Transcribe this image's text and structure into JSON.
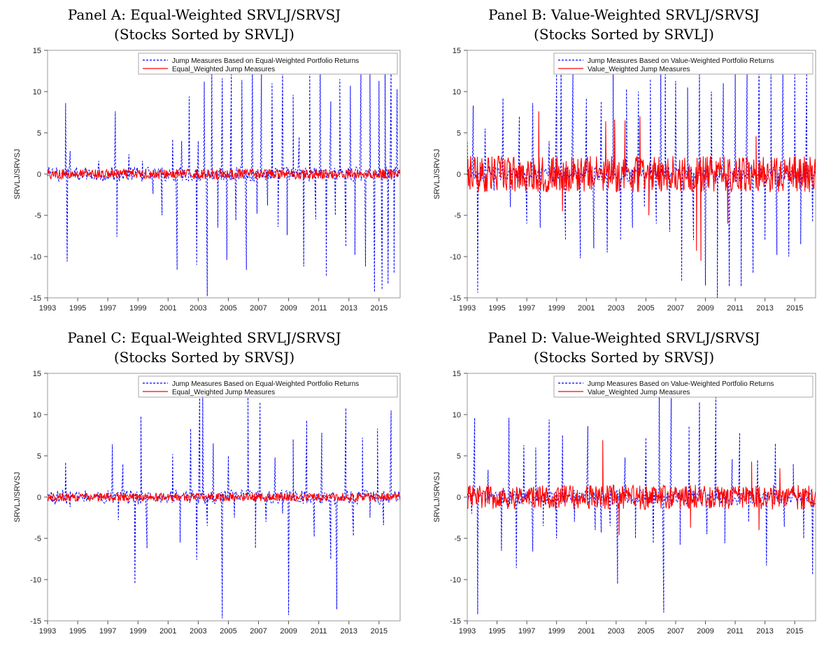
{
  "chart_data": [
    {
      "type": "line",
      "title": "Panel A: Equal-Weighted SRVLJ/SRVSJ",
      "subtitle": "(Stocks Sorted by SRVLJ)",
      "ylabel": "SRVLJ/SRVSJ",
      "xlabel": "",
      "xlim": [
        1993,
        2016.4
      ],
      "ylim": [
        -15,
        15
      ],
      "yticks": [
        -15,
        -10,
        -5,
        0,
        5,
        10,
        15
      ],
      "xticks": [
        "1993",
        "1995",
        "1997",
        "1999",
        "2001",
        "2003",
        "2005",
        "2007",
        "2009",
        "2011",
        "2013",
        "2015"
      ],
      "grid": false,
      "legend_position": "top-right",
      "series": [
        {
          "name": "Jump Measures Based on Equal-Weighted Portfolio Returns",
          "color": "#0000ff",
          "style": "dashed",
          "x": [
            1993.0,
            1993.6,
            1994.2,
            1994.3,
            1994.5,
            1994.8,
            1995.8,
            1996.4,
            1997.5,
            1997.6,
            1998.4,
            1999.3,
            2000.0,
            2000.6,
            2001.3,
            2001.6,
            2001.9,
            2002.4,
            2002.9,
            2003.0,
            2003.4,
            2003.6,
            2003.9,
            2004.3,
            2004.6,
            2004.9,
            2005.2,
            2005.5,
            2005.9,
            2006.2,
            2006.6,
            2006.9,
            2007.2,
            2007.6,
            2007.9,
            2008.3,
            2008.6,
            2008.9,
            2009.3,
            2009.7,
            2010.0,
            2010.4,
            2010.8,
            2011.1,
            2011.5,
            2011.8,
            2012.1,
            2012.4,
            2012.8,
            2013.1,
            2013.4,
            2013.8,
            2014.1,
            2014.4,
            2014.7,
            2015.0,
            2015.2,
            2015.4,
            2015.6,
            2015.8,
            2016.0,
            2016.2
          ],
          "values": [
            0.5,
            0.8,
            8.6,
            -10.6,
            2.8,
            0.5,
            0.3,
            1.6,
            7.6,
            -7.6,
            2.4,
            1.6,
            -2.4,
            -5.0,
            4.2,
            -11.6,
            4.0,
            9.4,
            -11.0,
            4.0,
            11.2,
            -14.8,
            12.7,
            -6.5,
            11.6,
            -10.4,
            12.3,
            -5.6,
            11.4,
            -11.6,
            13.6,
            -4.8,
            12.2,
            -3.8,
            11.0,
            -6.4,
            12.8,
            -7.4,
            9.6,
            4.5,
            -11.2,
            12.4,
            -5.5,
            13.6,
            -12.4,
            8.8,
            -5.0,
            11.5,
            -8.8,
            10.7,
            -9.8,
            12.5,
            -11.2,
            12.2,
            -14.3,
            11.3,
            -14.0,
            12.8,
            -13.3,
            13.2,
            -12.0,
            10.3
          ]
        },
        {
          "name": "Equal_Weighted Jump Measures",
          "color": "#ff0000",
          "style": "solid",
          "amplitude": 0.6
        }
      ]
    },
    {
      "type": "line",
      "title": "Panel B: Value-Weighted SRVLJ/SRVSJ",
      "subtitle": "(Stocks Sorted by SRVLJ)",
      "ylabel": "SRVLJ/SRVSJ",
      "xlabel": "",
      "xlim": [
        1993,
        2016.4
      ],
      "ylim": [
        -15,
        15
      ],
      "yticks": [
        -15,
        -10,
        -5,
        0,
        5,
        10,
        15
      ],
      "xticks": [
        "1993",
        "1995",
        "1997",
        "1999",
        "2001",
        "2003",
        "2005",
        "2007",
        "2009",
        "2011",
        "2013",
        "2015"
      ],
      "grid": false,
      "legend_position": "top-right",
      "series": [
        {
          "name": "Jump Measures Based on Value-Weighted Portfolio Returns",
          "color": "#0000ff",
          "style": "dashed",
          "x": [
            1993.0,
            1993.4,
            1993.7,
            1994.2,
            1994.8,
            1995.4,
            1995.9,
            1996.5,
            1997.0,
            1997.4,
            1997.9,
            1998.5,
            1999.0,
            1999.3,
            1999.6,
            2000.1,
            2000.6,
            2001.0,
            2001.5,
            2002.0,
            2002.4,
            2002.8,
            2003.3,
            2003.7,
            2004.1,
            2004.5,
            2004.9,
            2005.3,
            2005.7,
            2006.0,
            2006.3,
            2006.6,
            2007.0,
            2007.4,
            2007.8,
            2008.2,
            2008.6,
            2009.0,
            2009.4,
            2009.8,
            2010.2,
            2010.6,
            2011.0,
            2011.4,
            2011.8,
            2012.2,
            2012.6,
            2013.0,
            2013.4,
            2013.8,
            2014.2,
            2014.6,
            2015.0,
            2015.4,
            2015.8,
            2016.2
          ],
          "values": [
            4.0,
            8.3,
            -14.4,
            5.5,
            -2.0,
            9.2,
            -4.0,
            7.0,
            -6.0,
            8.6,
            -6.5,
            4.0,
            12.1,
            14.0,
            -8.0,
            12.5,
            -10.2,
            9.2,
            -9.0,
            8.8,
            -9.5,
            12.5,
            -8.0,
            10.3,
            -6.5,
            10.0,
            -4.0,
            11.5,
            -6.0,
            12.5,
            14.2,
            -7.0,
            11.3,
            -13.0,
            10.5,
            -8.0,
            12.5,
            -13.5,
            10.0,
            -15.0,
            11.0,
            -13.6,
            12.4,
            -13.6,
            12.8,
            -12.0,
            14.3,
            -8.0,
            12.1,
            -9.8,
            13.0,
            -10.0,
            12.5,
            -8.5,
            12.2,
            -5.8
          ]
        },
        {
          "name": "Value_Weighted Jump Measures",
          "color": "#ff0000",
          "style": "solid",
          "amplitude": 2.2,
          "x": [
            1997.8,
            1999.4,
            2002.3,
            2002.9,
            2003.6,
            2004.6,
            2005.2,
            2008.4,
            2008.7,
            2010.5,
            2012.4
          ],
          "values": [
            7.6,
            -4.5,
            6.4,
            6.6,
            6.5,
            7.0,
            -5.0,
            -9.3,
            -10.5,
            -6.0,
            4.6
          ]
        }
      ]
    },
    {
      "type": "line",
      "title": "Panel C: Equal-Weighted SRVLJ/SRVSJ",
      "subtitle": "(Stocks Sorted by SRVSJ)",
      "ylabel": "SRVLJ/SRVSJ",
      "xlabel": "",
      "xlim": [
        1993,
        2016.4
      ],
      "ylim": [
        -15,
        15
      ],
      "yticks": [
        -15,
        -10,
        -5,
        0,
        5,
        10,
        15
      ],
      "xticks": [
        "1993",
        "1995",
        "1997",
        "1999",
        "2001",
        "2003",
        "2005",
        "2007",
        "2009",
        "2011",
        "2013",
        "2015"
      ],
      "grid": false,
      "legend_position": "top-right",
      "series": [
        {
          "name": "Jump Measures Based on Equal-Weighted Portfolio Returns",
          "color": "#0000ff",
          "style": "dashed",
          "x": [
            1994.2,
            1994.5,
            1997.3,
            1997.7,
            1998.0,
            1998.8,
            1999.2,
            1999.6,
            2001.3,
            2001.8,
            2002.5,
            2002.9,
            2003.1,
            2003.3,
            2003.6,
            2004.0,
            2004.6,
            2005.0,
            2005.4,
            2006.3,
            2006.8,
            2007.1,
            2007.5,
            2008.1,
            2008.6,
            2009.0,
            2009.3,
            2010.2,
            2010.7,
            2011.2,
            2011.8,
            2012.2,
            2012.8,
            2013.3,
            2013.9,
            2014.4,
            2014.9,
            2015.3,
            2015.8
          ],
          "values": [
            4.2,
            -1.2,
            6.4,
            -2.8,
            4.0,
            -10.5,
            9.8,
            -6.2,
            5.2,
            -5.5,
            8.3,
            -7.6,
            13.5,
            12.8,
            -3.5,
            6.5,
            -14.7,
            5.0,
            -2.5,
            12.5,
            -6.2,
            11.5,
            -3.0,
            4.8,
            -2.0,
            -14.3,
            7.0,
            9.3,
            -4.8,
            7.8,
            -7.5,
            -13.6,
            10.8,
            -4.7,
            7.2,
            -2.5,
            8.3,
            -3.4,
            10.5
          ]
        },
        {
          "name": "Equal_Weighted Jump Measures",
          "color": "#ff0000",
          "style": "solid",
          "amplitude": 0.5
        }
      ]
    },
    {
      "type": "line",
      "title": "Panel D: Value-Weighted SRVLJ/SRVSJ",
      "subtitle": "(Stocks Sorted by SRVSJ)",
      "ylabel": "SRVLJ/SRVSJ",
      "xlabel": "",
      "xlim": [
        1993,
        2016.4
      ],
      "ylim": [
        -15,
        15
      ],
      "yticks": [
        -15,
        -10,
        -5,
        0,
        5,
        10,
        15
      ],
      "xticks": [
        "1993",
        "1995",
        "1997",
        "1999",
        "2001",
        "2003",
        "2005",
        "2007",
        "2009",
        "2011",
        "2013",
        "2015"
      ],
      "grid": false,
      "legend_position": "top-right",
      "series": [
        {
          "name": "Jump Measures Based on Value-Weighted Portfolio Returns",
          "color": "#0000ff",
          "style": "dashed",
          "x": [
            1993.3,
            1993.5,
            1993.7,
            1994.4,
            1995.3,
            1995.8,
            1996.3,
            1996.8,
            1997.4,
            1997.6,
            1998.1,
            1998.5,
            1999.0,
            1999.4,
            2000.2,
            2001.1,
            2001.6,
            2002.0,
            2002.6,
            2003.1,
            2003.6,
            2004.3,
            2005.0,
            2005.5,
            2005.9,
            2006.2,
            2006.7,
            2007.3,
            2007.9,
            2008.6,
            2009.1,
            2009.7,
            2010.3,
            2010.8,
            2011.3,
            2011.9,
            2012.5,
            2013.1,
            2013.7,
            2014.3,
            2014.9,
            2015.6,
            2016.2
          ],
          "values": [
            -2.0,
            9.6,
            -14.2,
            3.3,
            -6.5,
            9.6,
            -8.6,
            6.3,
            -6.6,
            6.0,
            -3.5,
            9.4,
            -5.0,
            7.5,
            -3.0,
            8.6,
            -4.0,
            -4.3,
            -3.5,
            -10.5,
            4.8,
            -5.0,
            7.2,
            -5.6,
            14.0,
            -14.0,
            12.0,
            -5.8,
            8.6,
            11.5,
            -4.5,
            12.1,
            -5.6,
            4.6,
            7.8,
            -3.0,
            4.5,
            -8.3,
            6.5,
            -3.6,
            4.0,
            -5.0,
            -9.4
          ]
        },
        {
          "name": "Value_Weighted Jump Measures",
          "color": "#ff0000",
          "style": "solid",
          "amplitude": 1.5,
          "x": [
            2002.1,
            2003.2,
            2008.0,
            2012.1,
            2012.6,
            2014.0
          ],
          "values": [
            6.9,
            -4.6,
            -3.7,
            4.3,
            -4.0,
            3.5
          ]
        }
      ]
    }
  ]
}
